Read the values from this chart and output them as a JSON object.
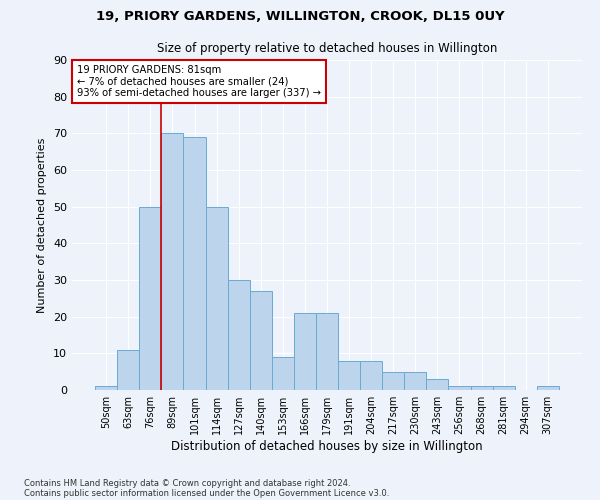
{
  "title1": "19, PRIORY GARDENS, WILLINGTON, CROOK, DL15 0UY",
  "title2": "Size of property relative to detached houses in Willington",
  "xlabel": "Distribution of detached houses by size in Willington",
  "ylabel": "Number of detached properties",
  "bar_color": "#bdd4ed",
  "bar_edge_color": "#6aaad4",
  "annotation_line_color": "#cc0000",
  "categories": [
    "50sqm",
    "63sqm",
    "76sqm",
    "89sqm",
    "101sqm",
    "114sqm",
    "127sqm",
    "140sqm",
    "153sqm",
    "166sqm",
    "179sqm",
    "191sqm",
    "204sqm",
    "217sqm",
    "230sqm",
    "243sqm",
    "256sqm",
    "268sqm",
    "281sqm",
    "294sqm",
    "307sqm"
  ],
  "values": [
    1,
    11,
    50,
    70,
    69,
    50,
    30,
    27,
    9,
    21,
    21,
    8,
    8,
    5,
    5,
    3,
    1,
    1,
    1,
    0,
    1
  ],
  "ylim": [
    0,
    90
  ],
  "yticks": [
    0,
    10,
    20,
    30,
    40,
    50,
    60,
    70,
    80,
    90
  ],
  "annotation_label": "19 PRIORY GARDENS: 81sqm",
  "annotation_text_line2": "← 7% of detached houses are smaller (24)",
  "annotation_text_line3": "93% of semi-detached houses are larger (337) →",
  "footnote1": "Contains HM Land Registry data © Crown copyright and database right 2024.",
  "footnote2": "Contains public sector information licensed under the Open Government Licence v3.0.",
  "background_color": "#eef2fa",
  "plot_bg_color": "#eef2fa",
  "grid_color": "#ffffff"
}
